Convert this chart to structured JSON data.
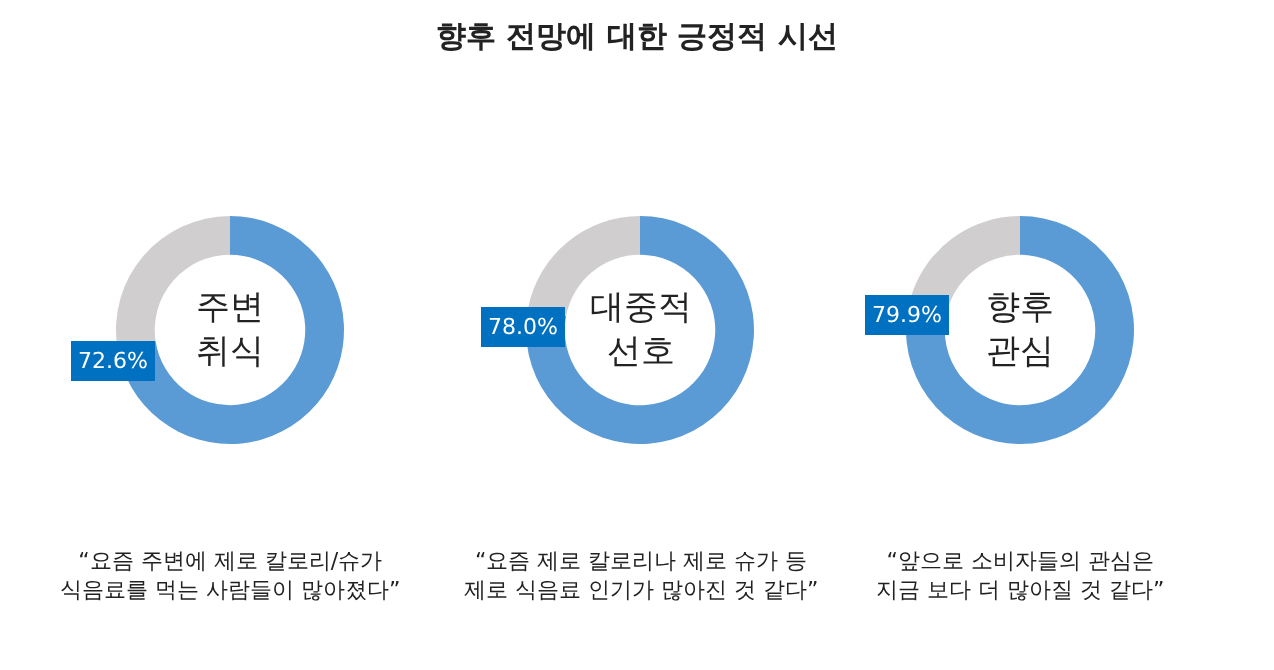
{
  "chart_data": [
    {
      "type": "donut",
      "subtitle": "주변\n취식",
      "categories": [
        null,
        null
      ],
      "values": [
        72.6,
        27.4
      ],
      "colors": [
        "#5b9bd5",
        "#d0cece"
      ],
      "value_labels": [
        "72.6%",
        null
      ],
      "annotations": [
        "“요즘 주변에 제로 칼로리/슈가\n식음료를 먹는 사람들이 많아졌다”"
      ],
      "legend": false
    },
    {
      "type": "donut",
      "title": "향후 전망에 대한 긍정적 시선",
      "subtitle": "대중적\n선호",
      "categories": [
        null,
        null
      ],
      "values": [
        78.0,
        22.0
      ],
      "colors": [
        "#5b9bd5",
        "#d0cece"
      ],
      "value_labels": [
        "78.0%",
        null
      ],
      "annotations": [
        "“요즘 제로 칼로리나 제로 슈가 등\n제로 식음료 인기가 많아진 것 같다”"
      ],
      "legend": false
    },
    {
      "type": "donut",
      "subtitle": "향후\n관심",
      "categories": [
        null,
        null
      ],
      "values": [
        79.9,
        20.1
      ],
      "colors": [
        "#5b9bd5",
        "#d0cece"
      ],
      "value_labels": [
        "79.9%",
        null
      ],
      "annotations": [
        "“앞으로 소비자들의 관심은\n지금 보다 더 많아질 것 같다”"
      ],
      "legend": false
    }
  ]
}
